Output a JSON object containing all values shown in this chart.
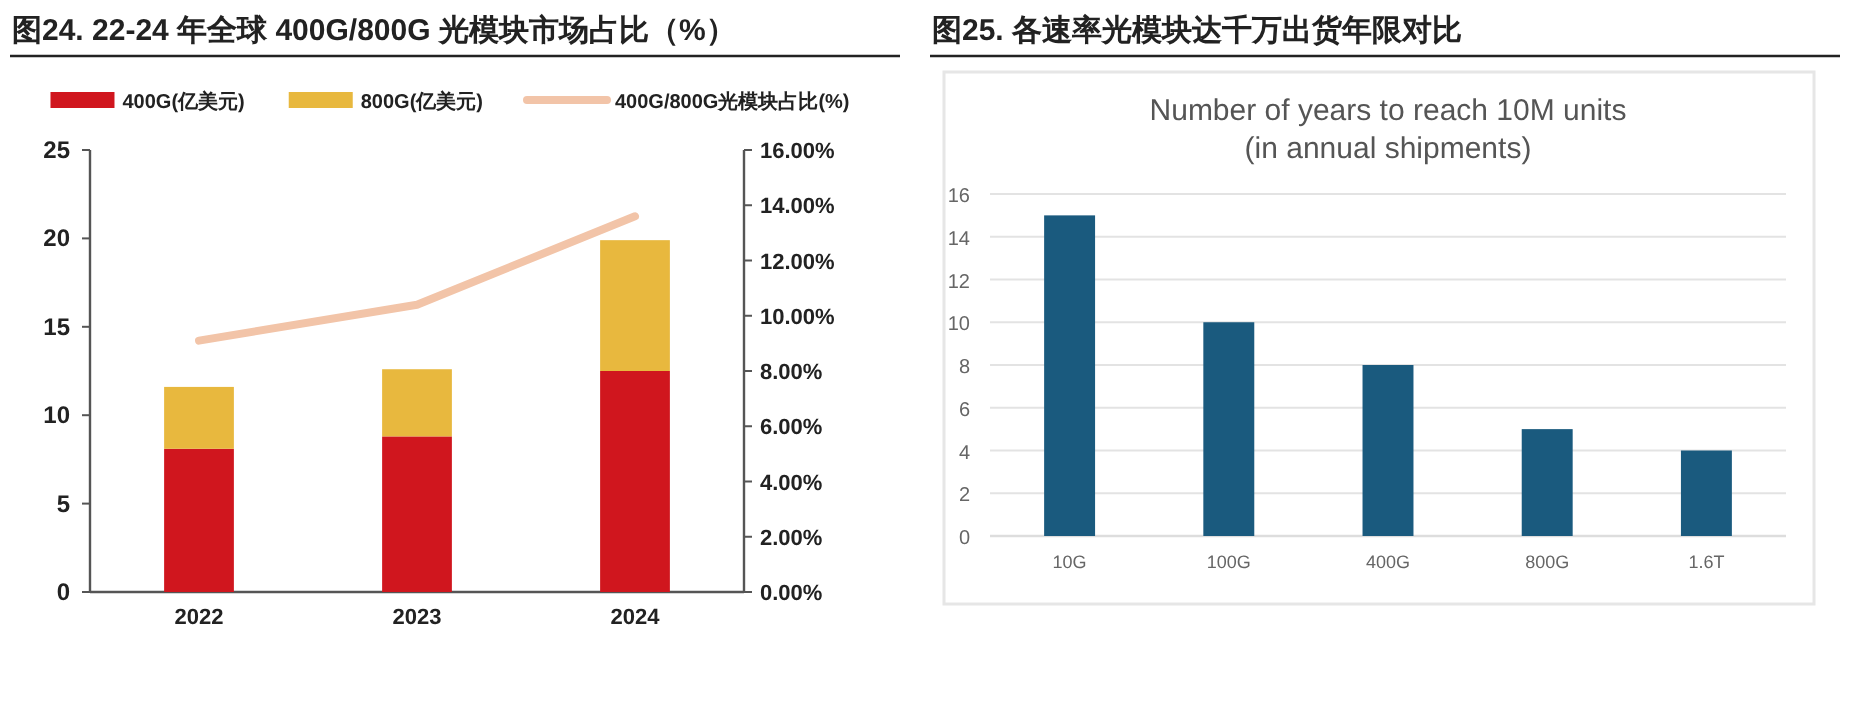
{
  "chart_data": [
    {
      "type": "bar",
      "title": "图24. 22-24 年全球 400G/800G 光模块市场占比（%）",
      "categories": [
        "2022",
        "2023",
        "2024"
      ],
      "stacked": true,
      "legend": "top",
      "series": [
        {
          "name": "400G(亿美元)",
          "color": "#d0161e",
          "values": [
            8.1,
            8.8,
            12.5
          ]
        },
        {
          "name": "800G(亿美元)",
          "color": "#e8b83e",
          "values": [
            3.5,
            3.8,
            7.4
          ]
        },
        {
          "name": "400G/800G光模块占比(%)",
          "color": "#f2c4a8",
          "type": "line",
          "axis": "y2",
          "values": [
            9.1,
            10.4,
            13.6
          ]
        }
      ],
      "ylim": [
        0,
        25
      ],
      "yticks": [
        0,
        5,
        10,
        15,
        20,
        25
      ],
      "y2lim": [
        0,
        16
      ],
      "y2ticks": [
        {
          "value": 0,
          "label": "0.00%"
        },
        {
          "value": 2,
          "label": "2.00%"
        },
        {
          "value": 4,
          "label": "4.00%"
        },
        {
          "value": 6,
          "label": "6.00%"
        },
        {
          "value": 8,
          "label": "8.00%"
        },
        {
          "value": 10,
          "label": "10.00%"
        },
        {
          "value": 12,
          "label": "12.00%"
        },
        {
          "value": 14,
          "label": "14.00%"
        },
        {
          "value": 16,
          "label": "16.00%"
        }
      ]
    },
    {
      "type": "bar",
      "title": "图25. 各速率光模块达千万出货年限对比",
      "subtitle": "Number of years to reach 10M units\n(in annual shipments)",
      "categories": [
        "10G",
        "100G",
        "400G",
        "800G",
        "1.6T"
      ],
      "series": [
        {
          "color": "#1a5a7e",
          "values": [
            15,
            10,
            8,
            5,
            4
          ]
        }
      ],
      "ylim": [
        0,
        16
      ],
      "yticks": [
        0,
        2,
        4,
        6,
        8,
        10,
        12,
        14,
        16
      ],
      "grid": "y"
    }
  ]
}
